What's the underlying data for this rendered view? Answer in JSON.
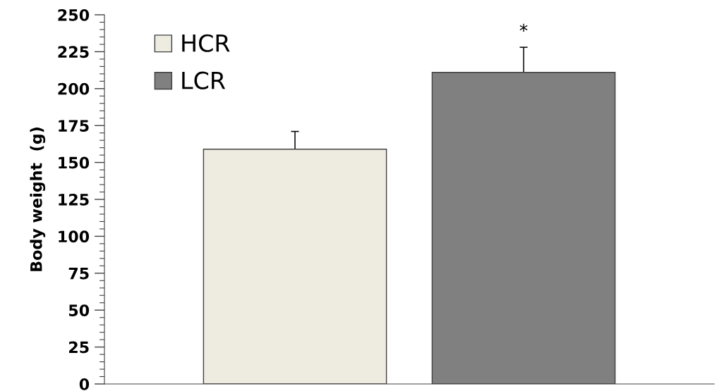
{
  "chart_data": {
    "type": "bar",
    "ylabel": "Body weight  (g)",
    "categories": [
      null
    ],
    "series": [
      {
        "name": "HCR",
        "color": "#eeebe0",
        "values": [
          159
        ],
        "errors": [
          [
            159,
            171
          ]
        ]
      },
      {
        "name": "LCR",
        "color": "#808080",
        "values": [
          211
        ],
        "errors": [
          [
            211,
            228
          ]
        ]
      }
    ],
    "ylim": [
      0,
      250
    ],
    "yticks": [
      0,
      25,
      50,
      75,
      100,
      125,
      150,
      175,
      200,
      225,
      250
    ],
    "tick_labels": "y",
    "legend": "top left",
    "annotations": [
      "*"
    ]
  }
}
